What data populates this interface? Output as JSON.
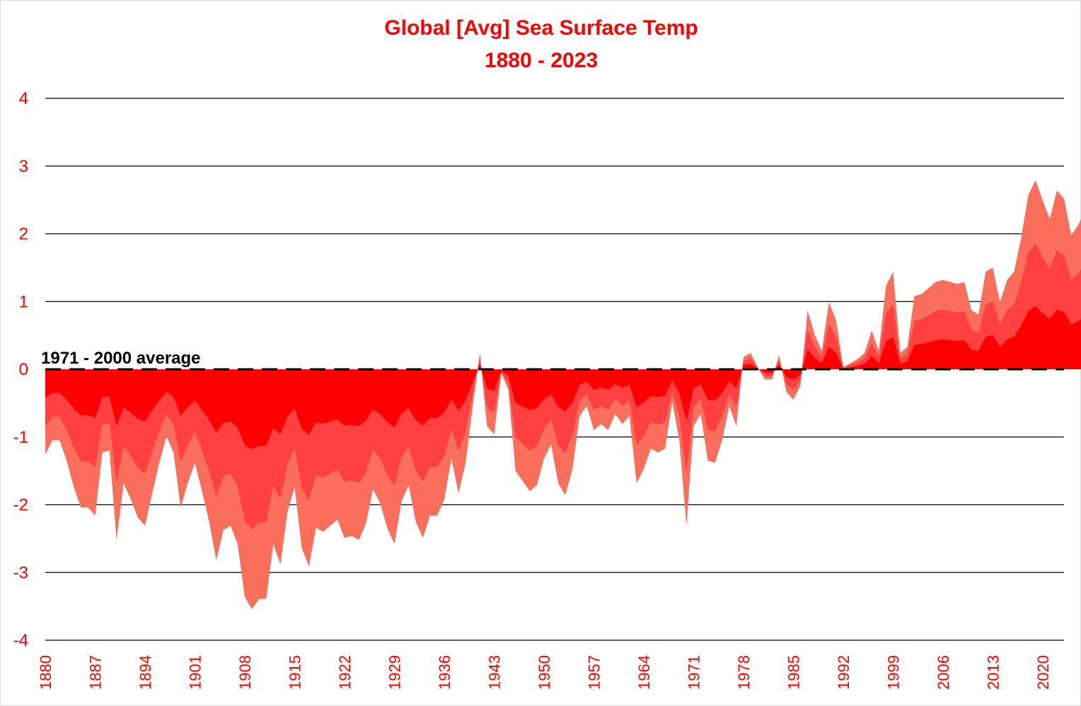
{
  "chart_data": {
    "type": "area",
    "title": "Global [Avg] Sea Surface Temp",
    "subtitle": "1880 - 2023",
    "xlabel": "",
    "ylabel": "",
    "x_start": 1880,
    "x_end": 2023,
    "ylim": [
      -4,
      4
    ],
    "yticks": [
      4,
      3,
      2,
      1,
      0,
      -1,
      -2,
      -3,
      -4
    ],
    "xticks": [
      1880,
      1887,
      1894,
      1901,
      1908,
      1915,
      1922,
      1929,
      1936,
      1943,
      1950,
      1957,
      1964,
      1971,
      1978,
      1985,
      1992,
      1999,
      2006,
      2013,
      2020
    ],
    "grid": true,
    "stacked": true,
    "reference_line": {
      "value": 0,
      "label": "1971 - 2000 average",
      "style": "dashed"
    },
    "series_colors": [
      "#ff0000",
      "#ff4040",
      "#fa6f5c"
    ],
    "anomaly": [
      -0.42,
      -0.35,
      -0.35,
      -0.45,
      -0.58,
      -0.68,
      -0.68,
      -0.72,
      -0.41,
      -0.4,
      -0.84,
      -0.56,
      -0.64,
      -0.73,
      -0.77,
      -0.61,
      -0.46,
      -0.33,
      -0.41,
      -0.68,
      -0.56,
      -0.46,
      -0.6,
      -0.75,
      -0.94,
      -0.79,
      -0.77,
      -0.86,
      -1.12,
      -1.18,
      -1.13,
      -1.13,
      -0.86,
      -0.96,
      -0.7,
      -0.58,
      -0.88,
      -0.97,
      -0.78,
      -0.8,
      -0.77,
      -0.74,
      -0.83,
      -0.82,
      -0.84,
      -0.76,
      -0.59,
      -0.66,
      -0.78,
      -0.86,
      -0.65,
      -0.57,
      -0.75,
      -0.83,
      -0.72,
      -0.72,
      -0.64,
      -0.44,
      -0.61,
      -0.46,
      -0.18,
      0.08,
      -0.28,
      -0.32,
      -0.02,
      -0.1,
      -0.5,
      -0.55,
      -0.6,
      -0.57,
      -0.44,
      -0.37,
      -0.56,
      -0.62,
      -0.49,
      -0.23,
      -0.18,
      -0.3,
      -0.27,
      -0.3,
      -0.22,
      -0.27,
      -0.23,
      -0.56,
      -0.49,
      -0.39,
      -0.41,
      -0.39,
      -0.16,
      -0.35,
      -0.77,
      -0.28,
      -0.22,
      -0.45,
      -0.46,
      -0.35,
      -0.18,
      -0.28,
      0.06,
      0.08,
      0.01,
      -0.05,
      -0.05,
      0.07,
      -0.11,
      -0.15,
      -0.08,
      0.29,
      0.17,
      0.09,
      0.33,
      0.24,
      0.01,
      0.03,
      0.05,
      0.08,
      0.19,
      0.09,
      0.41,
      0.48,
      0.08,
      0.11,
      0.36,
      0.37,
      0.4,
      0.43,
      0.44,
      0.43,
      0.42,
      0.43,
      0.29,
      0.27,
      0.48,
      0.5,
      0.33,
      0.44,
      0.48,
      0.65,
      0.86,
      0.93,
      0.83,
      0.74,
      0.88,
      0.84,
      0.66,
      0.71,
      0.79,
      1.15
    ]
  }
}
